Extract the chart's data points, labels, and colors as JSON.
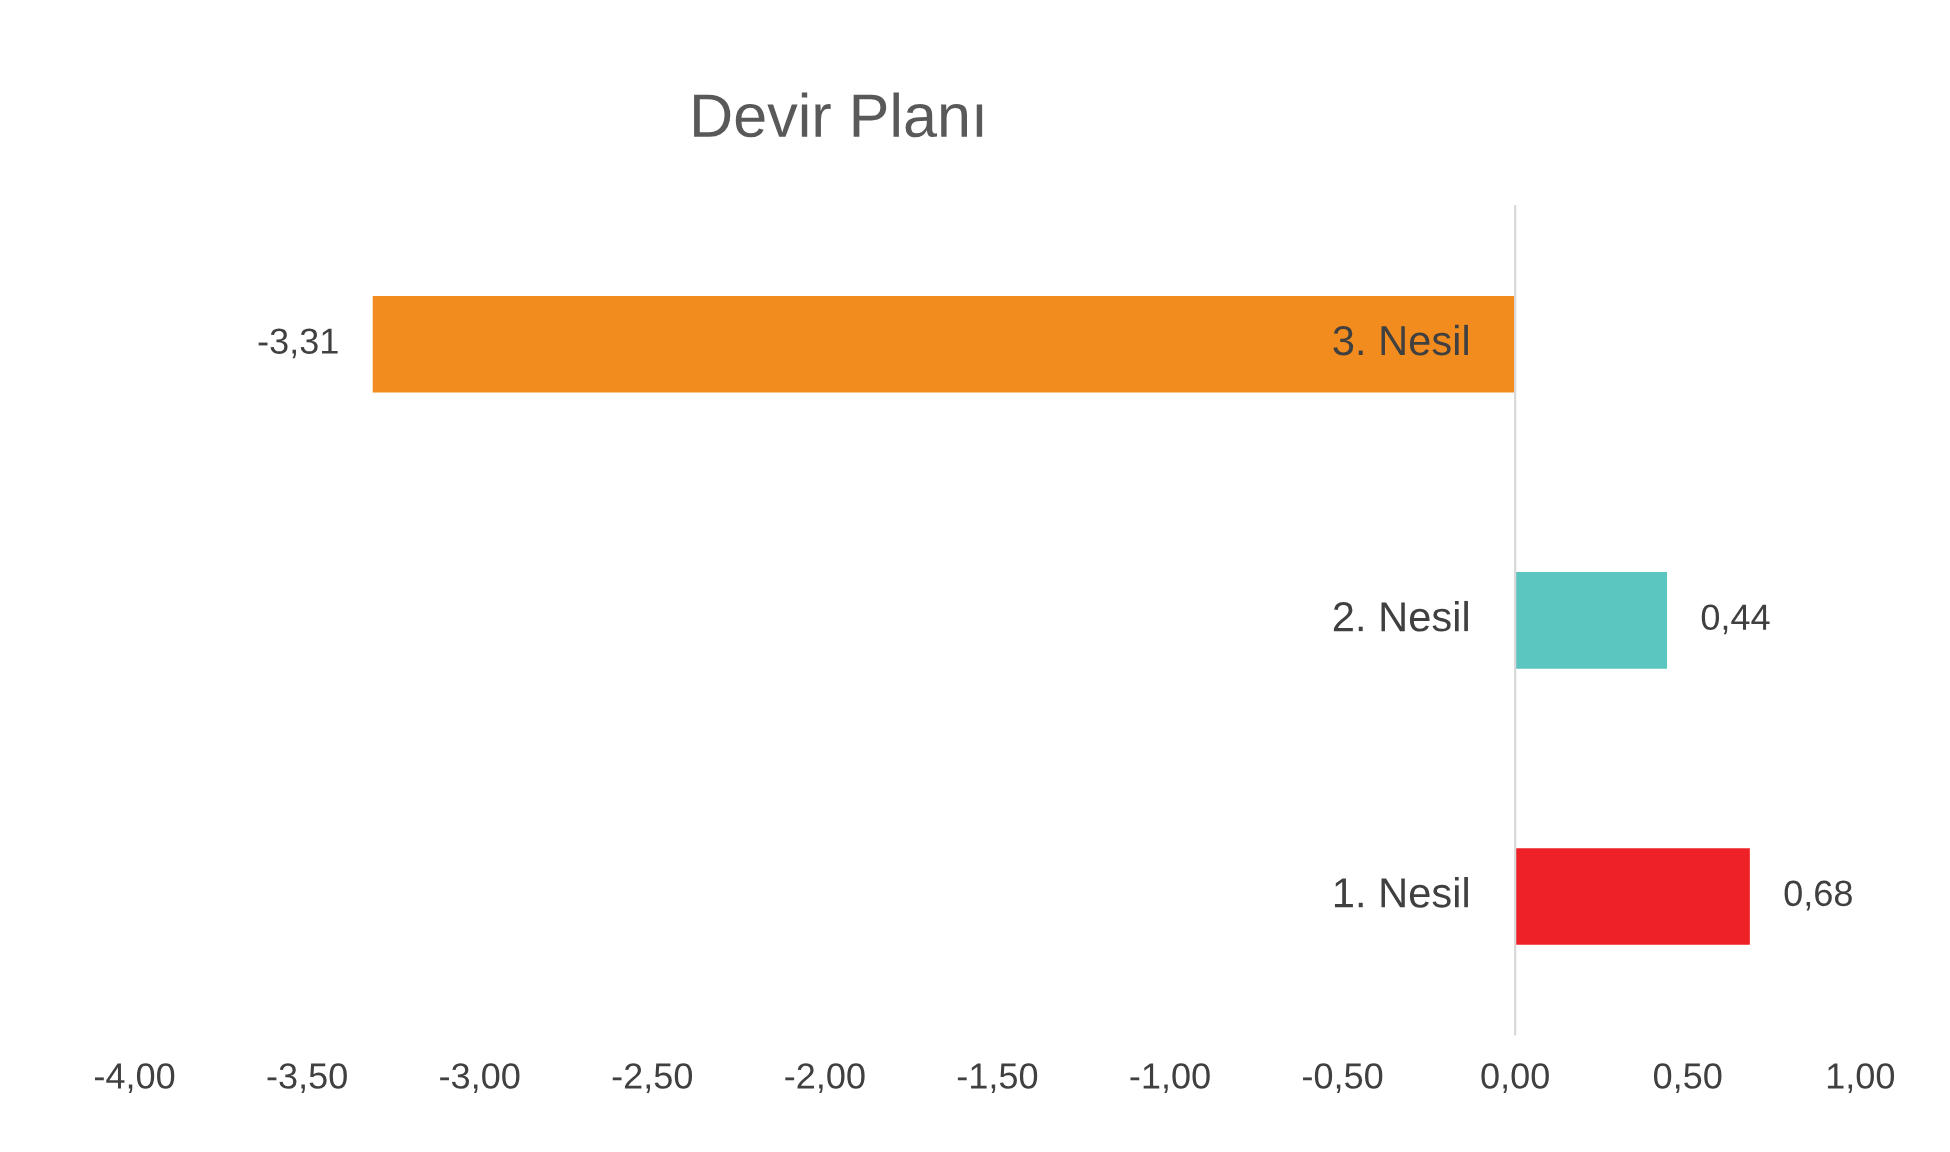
{
  "chart_data": {
    "type": "bar",
    "orientation": "horizontal",
    "title": "Devir Planı",
    "categories": [
      "3. Nesil",
      "2. Nesil",
      "1. Nesil"
    ],
    "values": [
      -3.31,
      0.44,
      0.68
    ],
    "colors": [
      "#f28c1e",
      "#5bc5bf",
      "#ee2127"
    ],
    "value_labels": [
      "-3,31",
      "0,44",
      "0,68"
    ],
    "xlim": [
      -4,
      1
    ],
    "xticks": [
      {
        "value": -4,
        "label": "-4,00"
      },
      {
        "value": -3.5,
        "label": "-3,50"
      },
      {
        "value": -3,
        "label": "-3,00"
      },
      {
        "value": -2.5,
        "label": "-2,50"
      },
      {
        "value": -2,
        "label": "-2,00"
      },
      {
        "value": -1.5,
        "label": "-1,50"
      },
      {
        "value": -1,
        "label": "-1,00"
      },
      {
        "value": -0.5,
        "label": "-0,50"
      },
      {
        "value": 0,
        "label": "0,00"
      },
      {
        "value": 0.5,
        "label": "0,50"
      },
      {
        "value": 1,
        "label": "1,00"
      }
    ],
    "grid": false,
    "legend": false
  }
}
